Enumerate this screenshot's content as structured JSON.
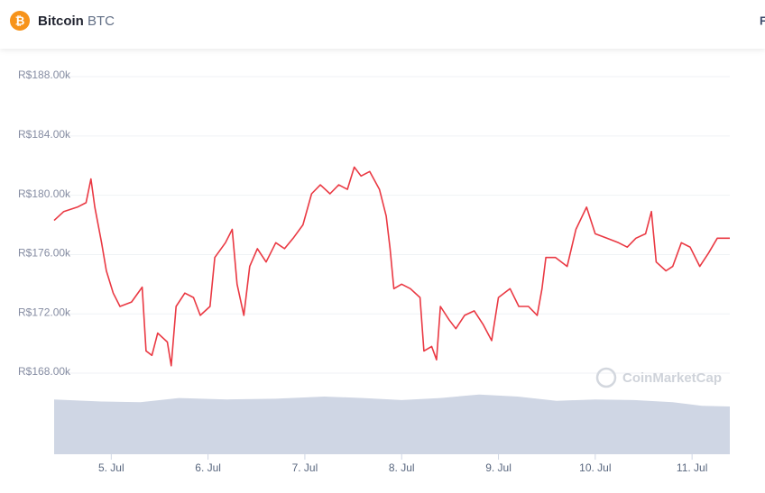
{
  "header": {
    "name": "Bitcoin",
    "symbol": "BTC",
    "logo": "₿",
    "right_text": "F"
  },
  "watermark": "CoinMarketCap",
  "chart_data": {
    "type": "line",
    "color": "#ea3943",
    "grid": true,
    "xlim": [
      4.41,
      11.39
    ],
    "ylim": [
      167.2,
      189.2
    ],
    "xticks": [
      {
        "value": 5,
        "label": "5. Jul"
      },
      {
        "value": 6,
        "label": "6. Jul"
      },
      {
        "value": 7,
        "label": "7. Jul"
      },
      {
        "value": 8,
        "label": "8. Jul"
      },
      {
        "value": 9,
        "label": "9. Jul"
      },
      {
        "value": 10,
        "label": "10. Jul"
      },
      {
        "value": 11,
        "label": "11. Jul"
      }
    ],
    "yticks": [
      {
        "value": 168,
        "label": "R$168.00k"
      },
      {
        "value": 172,
        "label": "R$172.00k"
      },
      {
        "value": 176,
        "label": "R$176.00k"
      },
      {
        "value": 180,
        "label": "R$180.00k"
      },
      {
        "value": 184,
        "label": "R$184.00k"
      },
      {
        "value": 188,
        "label": "R$188.00k"
      }
    ],
    "x": [
      4.41,
      4.51,
      4.65,
      4.74,
      4.79,
      4.83,
      4.9,
      4.95,
      5.02,
      5.09,
      5.21,
      5.32,
      5.36,
      5.42,
      5.48,
      5.58,
      5.62,
      5.67,
      5.76,
      5.85,
      5.92,
      6.02,
      6.07,
      6.18,
      6.25,
      6.3,
      6.37,
      6.43,
      6.51,
      6.6,
      6.7,
      6.79,
      6.88,
      6.98,
      7.07,
      7.16,
      7.26,
      7.35,
      7.44,
      7.51,
      7.58,
      7.67,
      7.77,
      7.84,
      7.88,
      7.92,
      8.0,
      8.09,
      8.19,
      8.23,
      8.31,
      8.36,
      8.4,
      8.49,
      8.56,
      8.65,
      8.75,
      8.84,
      8.93,
      9.0,
      9.12,
      9.21,
      9.31,
      9.4,
      9.45,
      9.49,
      9.59,
      9.71,
      9.8,
      9.91,
      10.0,
      10.12,
      10.24,
      10.33,
      10.42,
      10.52,
      10.58,
      10.63,
      10.73,
      10.8,
      10.89,
      10.98,
      11.08,
      11.17,
      11.26,
      11.39
    ],
    "values": [
      178.3,
      178.9,
      179.2,
      179.5,
      181.1,
      179.2,
      176.8,
      174.9,
      173.4,
      172.5,
      172.8,
      173.8,
      169.5,
      169.2,
      170.7,
      170.1,
      168.5,
      172.5,
      173.4,
      173.1,
      171.9,
      172.5,
      175.8,
      176.8,
      177.7,
      174.0,
      171.9,
      175.2,
      176.4,
      175.5,
      176.8,
      176.4,
      177.1,
      178.0,
      180.1,
      180.7,
      180.1,
      180.7,
      180.4,
      181.9,
      181.3,
      181.6,
      180.4,
      178.6,
      176.4,
      173.7,
      174.0,
      173.7,
      173.1,
      169.5,
      169.8,
      168.9,
      172.5,
      171.6,
      171.0,
      171.9,
      172.2,
      171.3,
      170.2,
      173.1,
      173.7,
      172.5,
      172.5,
      171.9,
      173.7,
      175.8,
      175.8,
      175.2,
      177.7,
      179.2,
      177.4,
      177.1,
      176.8,
      176.5,
      177.1,
      177.4,
      178.9,
      175.5,
      174.9,
      175.2,
      176.8,
      176.5,
      175.2,
      176.1,
      177.1,
      177.1
    ],
    "volume": {
      "color": "#cfd6e4",
      "ylim": [
        0,
        100
      ],
      "x": [
        4.41,
        4.9,
        5.3,
        5.7,
        6.2,
        6.7,
        7.2,
        7.6,
        8.0,
        8.4,
        8.8,
        9.2,
        9.6,
        10.0,
        10.4,
        10.8,
        11.1,
        11.39
      ],
      "values": [
        78,
        75,
        74,
        80,
        78,
        79,
        82,
        80,
        77,
        80,
        85,
        82,
        76,
        78,
        77,
        74,
        69,
        68
      ]
    }
  }
}
